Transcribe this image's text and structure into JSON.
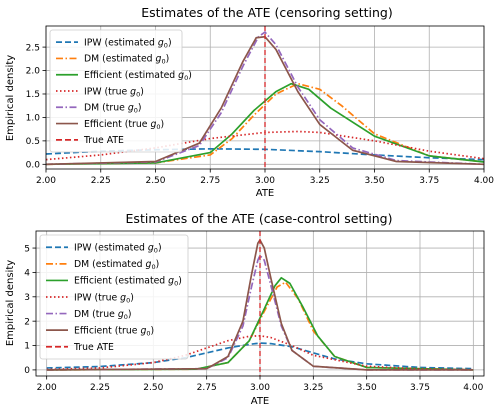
{
  "chart_data": [
    {
      "type": "line",
      "title": "Estimates of the ATE (censoring setting)",
      "xlabel": "ATE",
      "ylabel": "Empirical density",
      "xlim": [
        2.0,
        4.0
      ],
      "ylim": [
        -0.1,
        2.95
      ],
      "xticks": [
        "2.00",
        "2.25",
        "2.50",
        "2.75",
        "3.00",
        "3.25",
        "3.50",
        "3.75",
        "4.00"
      ],
      "yticks": [
        "0.0",
        "0.5",
        "1.0",
        "1.5",
        "2.0",
        "2.5"
      ],
      "grid": true,
      "legend_position": "upper-left",
      "true_ate": 3.0,
      "true_ate_label": "True ATE",
      "series": [
        {
          "name": "IPW (estimated g0)",
          "name_pre": "IPW (estimated ",
          "name_sub": "0",
          "name_post": ")",
          "color": "#1f77b4",
          "style": "dashed",
          "x": [
            2.0,
            2.25,
            2.5,
            2.75,
            3.0,
            3.25,
            3.5,
            3.75,
            4.0
          ],
          "y": [
            0.22,
            0.28,
            0.31,
            0.33,
            0.32,
            0.27,
            0.2,
            0.14,
            0.1
          ]
        },
        {
          "name": "DM (estimated g0)",
          "name_pre": "DM (estimated ",
          "name_sub": "0",
          "name_post": ")",
          "color": "#ff7f0e",
          "style": "dashdot",
          "x": [
            2.0,
            2.5,
            2.75,
            2.85,
            2.95,
            3.05,
            3.15,
            3.25,
            3.35,
            3.5,
            3.75,
            4.0
          ],
          "y": [
            0.0,
            0.03,
            0.2,
            0.55,
            1.05,
            1.5,
            1.72,
            1.6,
            1.25,
            0.65,
            0.18,
            0.05
          ]
        },
        {
          "name": "Efficient (estimated g0)",
          "name_pre": "Efficient (estimated ",
          "name_sub": "0",
          "name_post": ")",
          "color": "#2ca02c",
          "style": "solid",
          "x": [
            2.0,
            2.5,
            2.75,
            2.85,
            2.95,
            3.05,
            3.12,
            3.2,
            3.3,
            3.5,
            3.75,
            4.0
          ],
          "y": [
            0.0,
            0.03,
            0.25,
            0.65,
            1.15,
            1.55,
            1.72,
            1.6,
            1.2,
            0.6,
            0.18,
            0.05
          ]
        },
        {
          "name": "IPW (true g0)",
          "name_pre": "IPW (true ",
          "name_sub": "0",
          "name_post": ")",
          "color": "#d62728",
          "style": "dotted",
          "x": [
            2.0,
            2.25,
            2.5,
            2.75,
            3.0,
            3.15,
            3.25,
            3.5,
            3.75,
            4.0
          ],
          "y": [
            0.1,
            0.2,
            0.35,
            0.55,
            0.68,
            0.7,
            0.68,
            0.5,
            0.28,
            0.12
          ]
        },
        {
          "name": "DM (true g0)",
          "name_pre": "DM (true ",
          "name_sub": "0",
          "name_post": ")",
          "color": "#9467bd",
          "style": "dashdot",
          "x": [
            2.0,
            2.5,
            2.7,
            2.8,
            2.9,
            2.97,
            3.0,
            3.05,
            3.15,
            3.25,
            3.4,
            3.6,
            4.0
          ],
          "y": [
            0.0,
            0.05,
            0.4,
            1.1,
            2.1,
            2.72,
            2.82,
            2.55,
            1.65,
            0.95,
            0.35,
            0.08,
            0.0
          ]
        },
        {
          "name": "Efficient (true g0)",
          "name_pre": "Efficient (true ",
          "name_sub": "0",
          "name_post": ")",
          "color": "#8c564b",
          "style": "solid",
          "x": [
            2.0,
            2.5,
            2.7,
            2.8,
            2.9,
            2.96,
            3.0,
            3.05,
            3.15,
            3.25,
            3.4,
            3.6,
            4.0
          ],
          "y": [
            0.0,
            0.06,
            0.45,
            1.2,
            2.2,
            2.7,
            2.72,
            2.45,
            1.55,
            0.85,
            0.3,
            0.06,
            0.0
          ]
        }
      ]
    },
    {
      "type": "line",
      "title": "Estimates of the ATE (case-control setting)",
      "xlabel": "ATE",
      "ylabel": "Empirical density",
      "xlim": [
        1.95,
        4.05
      ],
      "ylim": [
        -0.25,
        5.7
      ],
      "xticks": [
        "2.00",
        "2.25",
        "2.50",
        "2.75",
        "3.00",
        "3.25",
        "3.50",
        "3.75",
        "4.00"
      ],
      "yticks": [
        "0",
        "1",
        "2",
        "3",
        "4",
        "5"
      ],
      "grid": true,
      "legend_position": "upper-left",
      "true_ate": 3.0,
      "true_ate_label": "True ATE",
      "series": [
        {
          "name": "IPW (estimated g0)",
          "name_pre": "IPW (estimated ",
          "name_sub": "0",
          "name_post": ")",
          "color": "#1f77b4",
          "style": "dashed",
          "x": [
            2.0,
            2.25,
            2.5,
            2.65,
            2.75,
            2.85,
            2.95,
            3.0,
            3.05,
            3.15,
            3.25,
            3.35,
            3.5,
            3.75,
            4.0
          ],
          "y": [
            0.08,
            0.14,
            0.3,
            0.5,
            0.7,
            0.9,
            1.05,
            1.1,
            1.08,
            0.95,
            0.7,
            0.45,
            0.25,
            0.1,
            0.05
          ]
        },
        {
          "name": "DM (estimated g0)",
          "name_pre": "DM (estimated ",
          "name_sub": "0",
          "name_post": ")",
          "color": "#ff7f0e",
          "style": "dashdot",
          "x": [
            2.0,
            2.7,
            2.85,
            2.95,
            3.02,
            3.08,
            3.12,
            3.18,
            3.25,
            3.35,
            3.5,
            4.0
          ],
          "y": [
            0.0,
            0.03,
            0.3,
            1.2,
            2.4,
            3.4,
            3.6,
            2.9,
            1.6,
            0.55,
            0.1,
            0.0
          ]
        },
        {
          "name": "Efficient (estimated g0)",
          "name_pre": "Efficient (estimated ",
          "name_sub": "0",
          "name_post": ")",
          "color": "#2ca02c",
          "style": "solid",
          "x": [
            2.0,
            2.7,
            2.85,
            2.95,
            3.02,
            3.07,
            3.1,
            3.14,
            3.2,
            3.27,
            3.35,
            3.5,
            4.0
          ],
          "y": [
            0.0,
            0.03,
            0.3,
            1.2,
            2.5,
            3.45,
            3.78,
            3.55,
            2.6,
            1.4,
            0.55,
            0.1,
            0.0
          ]
        },
        {
          "name": "IPW (true g0)",
          "name_pre": "IPW (true ",
          "name_sub": "0",
          "name_post": ")",
          "color": "#d62728",
          "style": "dotted",
          "x": [
            2.0,
            2.25,
            2.5,
            2.65,
            2.75,
            2.85,
            2.95,
            3.0,
            3.05,
            3.15,
            3.25,
            3.5,
            3.75,
            4.0
          ],
          "y": [
            0.02,
            0.08,
            0.3,
            0.6,
            0.9,
            1.2,
            1.38,
            1.4,
            1.33,
            1.0,
            0.6,
            0.15,
            0.04,
            0.01
          ]
        },
        {
          "name": "DM (true g0)",
          "name_pre": "DM (true ",
          "name_sub": "0",
          "name_post": ")",
          "color": "#9467bd",
          "style": "dashdot",
          "x": [
            2.0,
            2.75,
            2.85,
            2.92,
            2.96,
            2.99,
            3.0,
            3.02,
            3.05,
            3.1,
            3.15,
            3.25,
            3.5,
            4.0
          ],
          "y": [
            0.0,
            0.05,
            0.5,
            1.8,
            3.4,
            4.5,
            4.7,
            4.5,
            3.5,
            1.8,
            0.8,
            0.15,
            0.0,
            0.0
          ]
        },
        {
          "name": "Efficient (true g0)",
          "name_pre": "Efficient (true ",
          "name_sub": "0",
          "name_post": ")",
          "color": "#8c564b",
          "style": "solid",
          "x": [
            2.0,
            2.75,
            2.85,
            2.92,
            2.96,
            2.99,
            3.0,
            3.02,
            3.05,
            3.1,
            3.15,
            3.25,
            3.5,
            4.0
          ],
          "y": [
            0.0,
            0.05,
            0.55,
            2.0,
            3.9,
            5.2,
            5.33,
            5.0,
            3.8,
            1.9,
            0.8,
            0.15,
            0.0,
            0.0
          ]
        }
      ]
    }
  ]
}
